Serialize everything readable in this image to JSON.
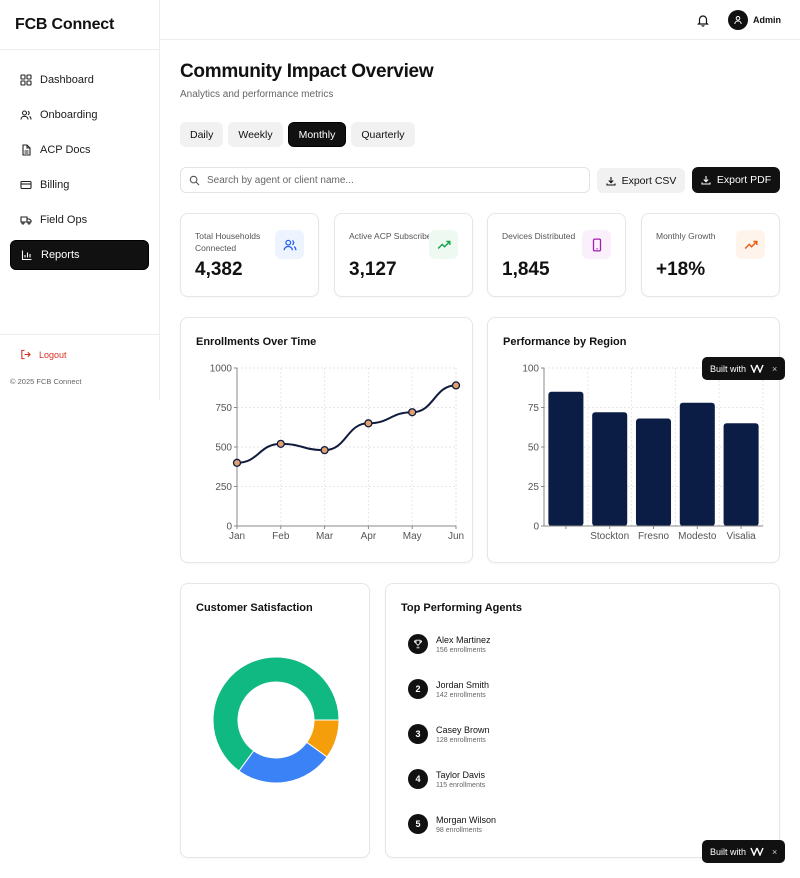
{
  "app": {
    "brand": "FCB Connect"
  },
  "sidebar": {
    "items": [
      {
        "label": "Dashboard",
        "icon": "grid-icon"
      },
      {
        "label": "Onboarding",
        "icon": "users-icon"
      },
      {
        "label": "ACP Docs",
        "icon": "document-icon"
      },
      {
        "label": "Billing",
        "icon": "credit-card-icon"
      },
      {
        "label": "Field Ops",
        "icon": "truck-icon"
      },
      {
        "label": "Reports",
        "icon": "bar-chart-icon",
        "active": true
      }
    ],
    "logout_label": "Logout",
    "copyright": "© 2025 FCB Connect"
  },
  "topbar": {
    "user_label": "Admin"
  },
  "header": {
    "title": "Community Impact Overview",
    "subtitle": "Analytics and performance metrics"
  },
  "tabs": [
    {
      "label": "Daily"
    },
    {
      "label": "Weekly"
    },
    {
      "label": "Monthly",
      "active": true
    },
    {
      "label": "Quarterly"
    }
  ],
  "search": {
    "placeholder": "Search by agent or client name..."
  },
  "actions": {
    "export_csv": "Export CSV",
    "export_pdf": "Export PDF"
  },
  "stats": [
    {
      "label": "Total Households Connected",
      "value": "4,382",
      "icon": "users-icon",
      "color": "#2563eb",
      "bg": "#eef4ff"
    },
    {
      "label": "Active ACP Subscribers",
      "value": "3,127",
      "icon": "trending-up-icon",
      "color": "#16a34a",
      "bg": "#eefaf1"
    },
    {
      "label": "Devices Distributed",
      "value": "1,845",
      "icon": "tablet-icon",
      "color": "#a21caf",
      "bg": "#faf0fb"
    },
    {
      "label": "Monthly Growth",
      "value": "+18%",
      "icon": "trending-up-icon",
      "color": "#ea580c",
      "bg": "#fff4ec"
    }
  ],
  "charts": {
    "enrollments_title": "Enrollments Over Time",
    "region_title": "Performance by Region",
    "satisfaction_title": "Customer Satisfaction"
  },
  "chart_data": [
    {
      "type": "line",
      "title": "Enrollments Over Time",
      "x": [
        "Jan",
        "Feb",
        "Mar",
        "Apr",
        "May",
        "Jun"
      ],
      "values": [
        400,
        520,
        480,
        650,
        720,
        890
      ],
      "ylim": [
        0,
        1000
      ],
      "yticks": [
        0,
        250,
        500,
        750,
        1000
      ],
      "grid": true,
      "color": "#0f1b3d",
      "point_color": "#e0a070"
    },
    {
      "type": "bar",
      "title": "Performance by Region",
      "categories": [
        "",
        "Stockton",
        "Fresno",
        "Modesto",
        "Visalia"
      ],
      "values": [
        85,
        72,
        68,
        78,
        65
      ],
      "ylim": [
        0,
        100
      ],
      "yticks": [
        0,
        25,
        50,
        75,
        100
      ],
      "grid": true,
      "color": "#0c1d45"
    },
    {
      "type": "pie",
      "title": "Customer Satisfaction",
      "donut": true,
      "slices": [
        {
          "value": 65,
          "color": "#10b981"
        },
        {
          "value": 25,
          "color": "#3b82f6"
        },
        {
          "value": 10,
          "color": "#f59e0b"
        }
      ]
    }
  ],
  "agents": {
    "title": "Top Performing Agents",
    "list": [
      {
        "rank": "1",
        "name": "Alex Martinez",
        "sub": "156 enrollments",
        "icon": "trophy-icon"
      },
      {
        "rank": "2",
        "name": "Jordan Smith",
        "sub": "142 enrollments"
      },
      {
        "rank": "3",
        "name": "Casey Brown",
        "sub": "128 enrollments"
      },
      {
        "rank": "4",
        "name": "Taylor Davis",
        "sub": "115 enrollments"
      },
      {
        "rank": "5",
        "name": "Morgan Wilson",
        "sub": "98 enrollments"
      }
    ]
  },
  "badge": {
    "label": "Built with",
    "close": "×"
  }
}
